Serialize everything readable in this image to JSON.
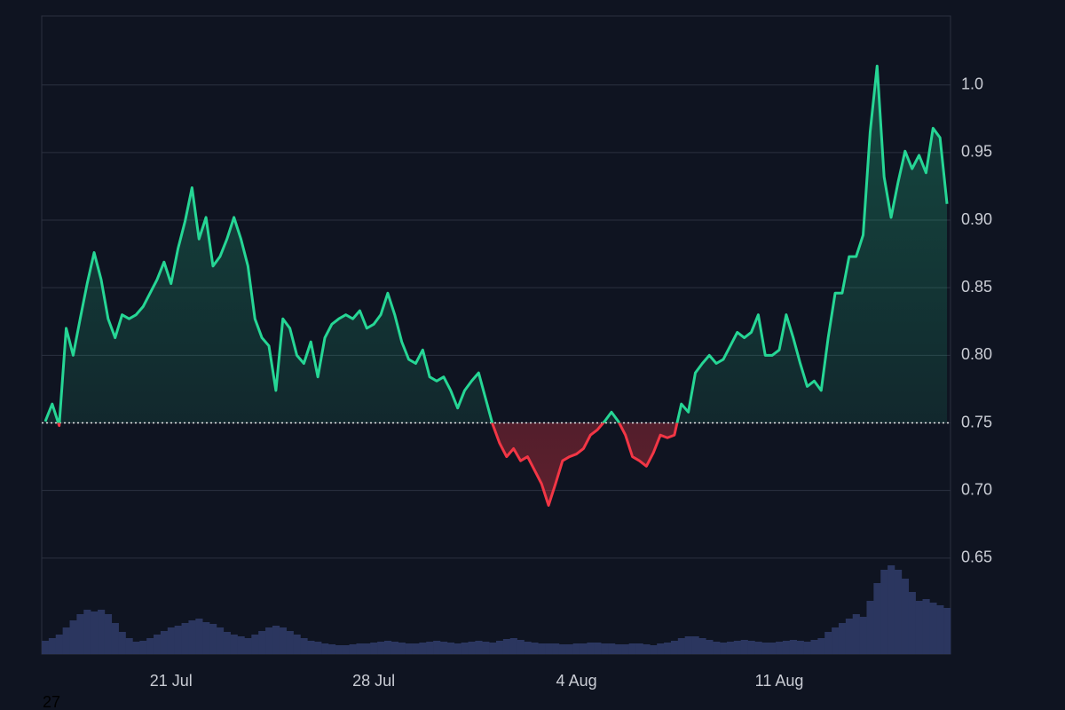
{
  "chart_data": {
    "type": "baseline",
    "categories": [
      null,
      null,
      null,
      null,
      null,
      null,
      null,
      null,
      null,
      null,
      null,
      null,
      null,
      null,
      null,
      null,
      null,
      null,
      "21 Jul",
      null,
      null,
      null,
      null,
      null,
      null,
      null,
      null,
      null,
      null,
      null,
      null,
      null,
      null,
      null,
      null,
      null,
      null,
      null,
      null,
      null,
      null,
      null,
      null,
      null,
      null,
      null,
      null,
      "28 Jul",
      null,
      null,
      null,
      null,
      null,
      null,
      null,
      null,
      null,
      null,
      null,
      null,
      null,
      null,
      null,
      null,
      null,
      null,
      null,
      null,
      null,
      null,
      null,
      null,
      null,
      null,
      null,
      null,
      "4 Aug",
      null,
      null,
      null,
      null,
      null,
      null,
      null,
      null,
      null,
      null,
      null,
      null,
      null,
      null,
      null,
      null,
      null,
      null,
      null,
      null,
      null,
      null,
      null,
      null,
      null,
      null,
      null,
      null,
      "11 Aug",
      null,
      null,
      null,
      null,
      null,
      null,
      null,
      null,
      null,
      null,
      null,
      null,
      null,
      null,
      null,
      null,
      null,
      null,
      null,
      null,
      null,
      null,
      null,
      null
    ],
    "values": [
      0.751,
      0.764,
      0.748,
      0.82,
      0.8,
      0.827,
      0.853,
      0.876,
      0.856,
      0.827,
      0.813,
      0.83,
      0.827,
      0.83,
      0.836,
      0.846,
      0.856,
      0.869,
      0.853,
      0.879,
      0.899,
      0.924,
      0.886,
      0.902,
      0.866,
      0.873,
      0.886,
      0.902,
      0.886,
      0.866,
      0.827,
      0.813,
      0.807,
      0.774,
      0.827,
      0.82,
      0.8,
      0.794,
      0.81,
      0.784,
      0.813,
      0.823,
      0.827,
      0.83,
      0.827,
      0.833,
      0.82,
      0.823,
      0.83,
      0.846,
      0.83,
      0.81,
      0.797,
      0.794,
      0.804,
      0.784,
      0.781,
      0.784,
      0.774,
      0.761,
      0.774,
      0.781,
      0.787,
      0.768,
      0.749,
      0.735,
      0.725,
      0.731,
      0.722,
      0.725,
      0.715,
      0.705,
      0.689,
      0.705,
      0.722,
      0.725,
      0.727,
      0.731,
      0.741,
      0.745,
      0.751,
      0.758,
      0.751,
      0.741,
      0.725,
      0.722,
      0.718,
      0.728,
      0.741,
      0.739,
      0.741,
      0.764,
      0.758,
      0.787,
      0.794,
      0.8,
      0.794,
      0.797,
      0.807,
      0.817,
      0.813,
      0.817,
      0.83,
      0.8,
      0.8,
      0.804,
      0.83,
      0.813,
      0.794,
      0.777,
      0.781,
      0.774,
      0.813,
      0.846,
      0.846,
      0.873,
      0.873,
      0.889,
      0.965,
      1.014,
      0.932,
      0.902,
      0.928,
      0.951,
      0.938,
      0.948,
      0.935,
      0.968,
      0.961,
      0.912
    ],
    "volume": [
      15,
      18,
      22,
      30,
      38,
      45,
      50,
      48,
      50,
      45,
      35,
      25,
      18,
      14,
      15,
      18,
      22,
      26,
      30,
      32,
      35,
      38,
      40,
      36,
      34,
      30,
      25,
      22,
      20,
      18,
      22,
      26,
      30,
      32,
      30,
      26,
      22,
      18,
      15,
      14,
      12,
      11,
      10,
      10,
      11,
      12,
      12,
      13,
      14,
      15,
      14,
      13,
      12,
      12,
      13,
      14,
      15,
      14,
      13,
      12,
      13,
      14,
      15,
      14,
      13,
      15,
      17,
      18,
      16,
      14,
      13,
      12,
      12,
      12,
      11,
      11,
      12,
      12,
      13,
      13,
      12,
      12,
      11,
      11,
      12,
      12,
      11,
      10,
      12,
      13,
      15,
      18,
      20,
      20,
      18,
      16,
      14,
      13,
      14,
      15,
      16,
      15,
      14,
      13,
      13,
      14,
      15,
      16,
      15,
      14,
      16,
      18,
      25,
      30,
      35,
      40,
      45,
      42,
      60,
      80,
      95,
      100,
      95,
      85,
      70,
      60,
      62,
      58,
      55,
      52
    ],
    "baseline": 0.75,
    "up_color": "#26d695",
    "down_color": "#f23645",
    "volume_color": "#2b365f",
    "ylim": [
      0.579,
      1.051
    ],
    "yticks": [
      0.65,
      {
        "value": 0.7,
        "label": "0.70"
      },
      0.75,
      {
        "value": 0.8,
        "label": "0.80"
      },
      0.85,
      {
        "value": 0.9,
        "label": "0.90"
      },
      0.95,
      {
        "value": 1.0,
        "label": "1.0"
      }
    ],
    "grid": true,
    "footer_text": "27"
  }
}
